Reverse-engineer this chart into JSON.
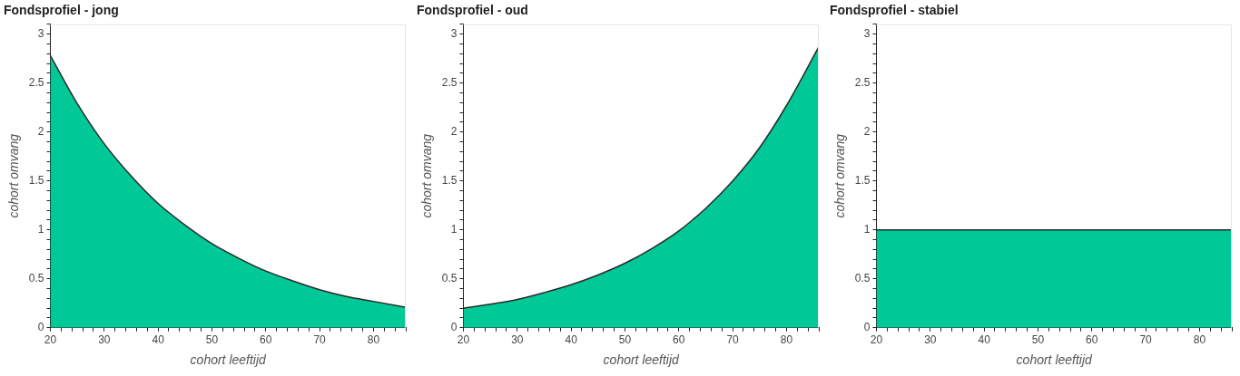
{
  "chart_data": [
    {
      "type": "area",
      "title": "Fondsprofiel - jong",
      "xlabel": "cohort leeftijd",
      "ylabel": "cohort omvang",
      "grid": false,
      "series": [
        {
          "color": "#00c896",
          "x": [
            20,
            25,
            30,
            35,
            40,
            45,
            50,
            55,
            60,
            65,
            70,
            75,
            80,
            86
          ],
          "values": [
            2.78,
            2.29,
            1.88,
            1.55,
            1.27,
            1.05,
            0.86,
            0.71,
            0.58,
            0.48,
            0.39,
            0.32,
            0.27,
            0.21
          ]
        }
      ],
      "xlim": [
        20,
        86
      ],
      "ylim": [
        0,
        3.1
      ],
      "xticks": [
        20,
        {
          "value": 22,
          "label": null
        },
        {
          "value": 24,
          "label": null
        },
        {
          "value": 26,
          "label": null
        },
        {
          "value": 28,
          "label": null
        },
        30,
        {
          "value": 32,
          "label": null
        },
        {
          "value": 34,
          "label": null
        },
        {
          "value": 36,
          "label": null
        },
        {
          "value": 38,
          "label": null
        },
        40,
        {
          "value": 42,
          "label": null
        },
        {
          "value": 44,
          "label": null
        },
        {
          "value": 46,
          "label": null
        },
        {
          "value": 48,
          "label": null
        },
        50,
        {
          "value": 52,
          "label": null
        },
        {
          "value": 54,
          "label": null
        },
        {
          "value": 56,
          "label": null
        },
        {
          "value": 58,
          "label": null
        },
        60,
        {
          "value": 62,
          "label": null
        },
        {
          "value": 64,
          "label": null
        },
        {
          "value": 66,
          "label": null
        },
        {
          "value": 68,
          "label": null
        },
        70,
        {
          "value": 72,
          "label": null
        },
        {
          "value": 74,
          "label": null
        },
        {
          "value": 76,
          "label": null
        },
        {
          "value": 78,
          "label": null
        },
        80,
        {
          "value": 82,
          "label": null
        },
        {
          "value": 84,
          "label": null
        },
        {
          "value": 86,
          "label": null
        }
      ],
      "yticks": [
        0,
        {
          "value": 0.1,
          "label": null
        },
        {
          "value": 0.2,
          "label": null
        },
        {
          "value": 0.3,
          "label": null
        },
        {
          "value": 0.4,
          "label": null
        },
        0.5,
        {
          "value": 0.6,
          "label": null
        },
        {
          "value": 0.7,
          "label": null
        },
        {
          "value": 0.8,
          "label": null
        },
        {
          "value": 0.9,
          "label": null
        },
        1,
        {
          "value": 1.1,
          "label": null
        },
        {
          "value": 1.2,
          "label": null
        },
        {
          "value": 1.3,
          "label": null
        },
        {
          "value": 1.4,
          "label": null
        },
        1.5,
        {
          "value": 1.6,
          "label": null
        },
        {
          "value": 1.7,
          "label": null
        },
        {
          "value": 1.8,
          "label": null
        },
        {
          "value": 1.9,
          "label": null
        },
        2,
        {
          "value": 2.1,
          "label": null
        },
        {
          "value": 2.2,
          "label": null
        },
        {
          "value": 2.3,
          "label": null
        },
        {
          "value": 2.4,
          "label": null
        },
        2.5,
        {
          "value": 2.6,
          "label": null
        },
        {
          "value": 2.7,
          "label": null
        },
        {
          "value": 2.8,
          "label": null
        },
        {
          "value": 2.9,
          "label": null
        },
        3,
        {
          "value": 3.1,
          "label": null
        }
      ]
    },
    {
      "type": "area",
      "title": "Fondsprofiel - oud",
      "xlabel": "cohort leeftijd",
      "ylabel": "cohort omvang",
      "grid": false,
      "series": [
        {
          "color": "#00c896",
          "x": [
            20,
            25,
            30,
            35,
            40,
            45,
            50,
            55,
            60,
            65,
            70,
            75,
            80,
            86
          ],
          "values": [
            0.2,
            0.24,
            0.29,
            0.36,
            0.44,
            0.54,
            0.66,
            0.81,
            0.99,
            1.22,
            1.5,
            1.84,
            2.27,
            2.87
          ]
        }
      ],
      "xlim": [
        20,
        86
      ],
      "ylim": [
        0,
        3.1
      ],
      "xticks": [
        20,
        {
          "value": 22,
          "label": null
        },
        {
          "value": 24,
          "label": null
        },
        {
          "value": 26,
          "label": null
        },
        {
          "value": 28,
          "label": null
        },
        30,
        {
          "value": 32,
          "label": null
        },
        {
          "value": 34,
          "label": null
        },
        {
          "value": 36,
          "label": null
        },
        {
          "value": 38,
          "label": null
        },
        40,
        {
          "value": 42,
          "label": null
        },
        {
          "value": 44,
          "label": null
        },
        {
          "value": 46,
          "label": null
        },
        {
          "value": 48,
          "label": null
        },
        50,
        {
          "value": 52,
          "label": null
        },
        {
          "value": 54,
          "label": null
        },
        {
          "value": 56,
          "label": null
        },
        {
          "value": 58,
          "label": null
        },
        60,
        {
          "value": 62,
          "label": null
        },
        {
          "value": 64,
          "label": null
        },
        {
          "value": 66,
          "label": null
        },
        {
          "value": 68,
          "label": null
        },
        70,
        {
          "value": 72,
          "label": null
        },
        {
          "value": 74,
          "label": null
        },
        {
          "value": 76,
          "label": null
        },
        {
          "value": 78,
          "label": null
        },
        80,
        {
          "value": 82,
          "label": null
        },
        {
          "value": 84,
          "label": null
        },
        {
          "value": 86,
          "label": null
        }
      ],
      "yticks": [
        0,
        {
          "value": 0.1,
          "label": null
        },
        {
          "value": 0.2,
          "label": null
        },
        {
          "value": 0.3,
          "label": null
        },
        {
          "value": 0.4,
          "label": null
        },
        0.5,
        {
          "value": 0.6,
          "label": null
        },
        {
          "value": 0.7,
          "label": null
        },
        {
          "value": 0.8,
          "label": null
        },
        {
          "value": 0.9,
          "label": null
        },
        1,
        {
          "value": 1.1,
          "label": null
        },
        {
          "value": 1.2,
          "label": null
        },
        {
          "value": 1.3,
          "label": null
        },
        {
          "value": 1.4,
          "label": null
        },
        1.5,
        {
          "value": 1.6,
          "label": null
        },
        {
          "value": 1.7,
          "label": null
        },
        {
          "value": 1.8,
          "label": null
        },
        {
          "value": 1.9,
          "label": null
        },
        2,
        {
          "value": 2.1,
          "label": null
        },
        {
          "value": 2.2,
          "label": null
        },
        {
          "value": 2.3,
          "label": null
        },
        {
          "value": 2.4,
          "label": null
        },
        2.5,
        {
          "value": 2.6,
          "label": null
        },
        {
          "value": 2.7,
          "label": null
        },
        {
          "value": 2.8,
          "label": null
        },
        {
          "value": 2.9,
          "label": null
        },
        3,
        {
          "value": 3.1,
          "label": null
        }
      ]
    },
    {
      "type": "area",
      "title": "Fondsprofiel - stabiel",
      "xlabel": "cohort leeftijd",
      "ylabel": "cohort omvang",
      "grid": false,
      "series": [
        {
          "color": "#00c896",
          "x": [
            20,
            86
          ],
          "values": [
            1,
            1
          ]
        }
      ],
      "xlim": [
        20,
        86
      ],
      "ylim": [
        0,
        3.1
      ],
      "xticks": [
        20,
        {
          "value": 22,
          "label": null
        },
        {
          "value": 24,
          "label": null
        },
        {
          "value": 26,
          "label": null
        },
        {
          "value": 28,
          "label": null
        },
        30,
        {
          "value": 32,
          "label": null
        },
        {
          "value": 34,
          "label": null
        },
        {
          "value": 36,
          "label": null
        },
        {
          "value": 38,
          "label": null
        },
        40,
        {
          "value": 42,
          "label": null
        },
        {
          "value": 44,
          "label": null
        },
        {
          "value": 46,
          "label": null
        },
        {
          "value": 48,
          "label": null
        },
        50,
        {
          "value": 52,
          "label": null
        },
        {
          "value": 54,
          "label": null
        },
        {
          "value": 56,
          "label": null
        },
        {
          "value": 58,
          "label": null
        },
        60,
        {
          "value": 62,
          "label": null
        },
        {
          "value": 64,
          "label": null
        },
        {
          "value": 66,
          "label": null
        },
        {
          "value": 68,
          "label": null
        },
        70,
        {
          "value": 72,
          "label": null
        },
        {
          "value": 74,
          "label": null
        },
        {
          "value": 76,
          "label": null
        },
        {
          "value": 78,
          "label": null
        },
        80,
        {
          "value": 82,
          "label": null
        },
        {
          "value": 84,
          "label": null
        },
        {
          "value": 86,
          "label": null
        }
      ],
      "yticks": [
        0,
        {
          "value": 0.1,
          "label": null
        },
        {
          "value": 0.2,
          "label": null
        },
        {
          "value": 0.3,
          "label": null
        },
        {
          "value": 0.4,
          "label": null
        },
        0.5,
        {
          "value": 0.6,
          "label": null
        },
        {
          "value": 0.7,
          "label": null
        },
        {
          "value": 0.8,
          "label": null
        },
        {
          "value": 0.9,
          "label": null
        },
        1,
        {
          "value": 1.1,
          "label": null
        },
        {
          "value": 1.2,
          "label": null
        },
        {
          "value": 1.3,
          "label": null
        },
        {
          "value": 1.4,
          "label": null
        },
        1.5,
        {
          "value": 1.6,
          "label": null
        },
        {
          "value": 1.7,
          "label": null
        },
        {
          "value": 1.8,
          "label": null
        },
        {
          "value": 1.9,
          "label": null
        },
        2,
        {
          "value": 2.1,
          "label": null
        },
        {
          "value": 2.2,
          "label": null
        },
        {
          "value": 2.3,
          "label": null
        },
        {
          "value": 2.4,
          "label": null
        },
        2.5,
        {
          "value": 2.6,
          "label": null
        },
        {
          "value": 2.7,
          "label": null
        },
        {
          "value": 2.8,
          "label": null
        },
        {
          "value": 2.9,
          "label": null
        },
        3,
        {
          "value": 3.1,
          "label": null
        }
      ]
    }
  ]
}
